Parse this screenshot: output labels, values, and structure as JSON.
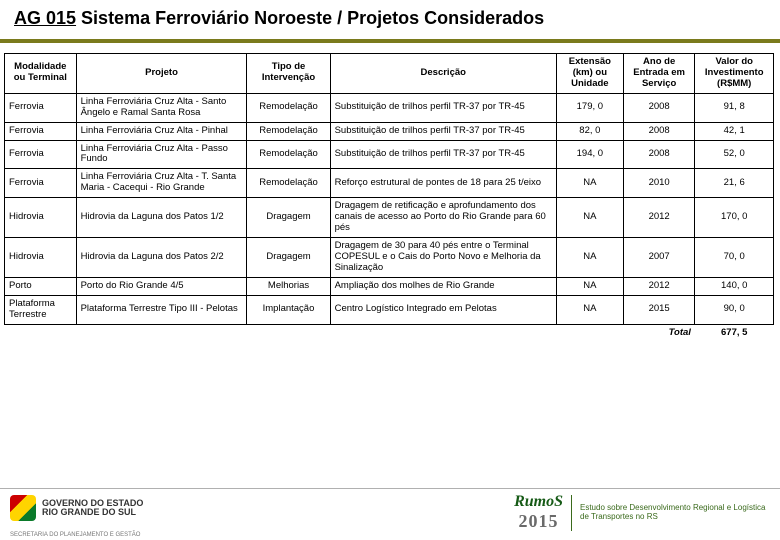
{
  "title": {
    "code": "AG 015",
    "rest": " Sistema Ferroviário Noroeste / Projetos Considerados"
  },
  "headers": {
    "modalidade": "Modalidade ou Terminal",
    "projeto": "Projeto",
    "tipo": "Tipo de Intervenção",
    "descricao": "Descrição",
    "extensao": "Extensão (km) ou Unidade",
    "ano": "Ano de Entrada em Serviço",
    "valor": "Valor do Investimento (R$MM)"
  },
  "rows": [
    {
      "mod": "Ferrovia",
      "proj": "Linha Ferroviária Cruz Alta - Santo Ângelo e Ramal Santa Rosa",
      "tipo": "Remodelação",
      "desc": "Substituição de trilhos perfil TR-37 por TR-45",
      "ext": "179, 0",
      "ano": "2008",
      "val": "91, 8"
    },
    {
      "mod": "Ferrovia",
      "proj": "Linha Ferroviária Cruz Alta - Pinhal",
      "tipo": "Remodelação",
      "desc": "Substituição de trilhos perfil TR-37 por TR-45",
      "ext": "82, 0",
      "ano": "2008",
      "val": "42, 1"
    },
    {
      "mod": "Ferrovia",
      "proj": "Linha Ferroviária Cruz Alta - Passo Fundo",
      "tipo": "Remodelação",
      "desc": "Substituição de trilhos perfil TR-37 por TR-45",
      "ext": "194, 0",
      "ano": "2008",
      "val": "52, 0"
    },
    {
      "mod": "Ferrovia",
      "proj": "Linha Ferroviária Cruz Alta - T. Santa Maria - Cacequi - Rio Grande",
      "tipo": "Remodelação",
      "desc": "Reforço estrutural de pontes de 18 para 25 t/eixo",
      "ext": "NA",
      "ano": "2010",
      "val": "21, 6"
    },
    {
      "mod": "Hidrovia",
      "proj": "Hidrovia da Laguna dos Patos 1/2",
      "tipo": "Dragagem",
      "desc": "Dragagem de retificação e aprofundamento dos canais de acesso ao Porto do Rio Grande para 60 pés",
      "ext": "NA",
      "ano": "2012",
      "val": "170, 0"
    },
    {
      "mod": "Hidrovia",
      "proj": "Hidrovia da Laguna dos Patos 2/2",
      "tipo": "Dragagem",
      "desc": "Dragagem de 30 para 40 pés entre o Terminal COPESUL e o Cais do Porto Novo e Melhoria da Sinalização",
      "ext": "NA",
      "ano": "2007",
      "val": "70, 0"
    },
    {
      "mod": "Porto",
      "proj": "Porto do Rio Grande 4/5",
      "tipo": "Melhorias",
      "desc": "Ampliação dos molhes de Rio Grande",
      "ext": "NA",
      "ano": "2012",
      "val": "140, 0"
    },
    {
      "mod": "Plataforma Terrestre",
      "proj": "Plataforma Terrestre Tipo III - Pelotas",
      "tipo": "Implantação",
      "desc": "Centro Logístico Integrado em Pelotas",
      "ext": "NA",
      "ano": "2015",
      "val": "90, 0"
    }
  ],
  "total": {
    "label": "Total",
    "value": "677, 5"
  },
  "footer": {
    "gov_line1": "GOVERNO DO ESTADO",
    "gov_line2": "RIO GRANDE DO SUL",
    "mini": "SECRETARIA DO PLANEJAMENTO E GESTÃO",
    "rumos": "RumoS",
    "year": "2015",
    "tagline": "Estudo sobre Desenvolvimento Regional e Logística de Transportes no RS"
  },
  "colors": {
    "olive": "#7a7a1c",
    "border": "#000000",
    "green": "#3a6a1c"
  }
}
